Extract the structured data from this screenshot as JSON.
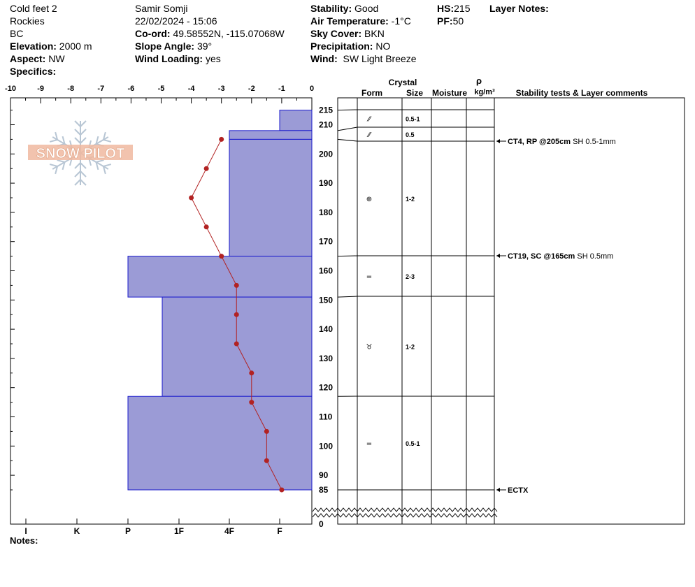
{
  "header": {
    "col1": {
      "site_name": "Cold feet 2",
      "range": "Rockies",
      "region": "BC",
      "elevation_label": "Elevation:",
      "elevation_value": "2000 m",
      "aspect_label": "Aspect:",
      "aspect_value": "NW",
      "specifics_label": "Specifics:"
    },
    "col2": {
      "observer": "Samir Somji",
      "datetime": "22/02/2024 - 15:06",
      "coord_label": "Co-ord:",
      "coord_value": "49.58552N, -115.07068W",
      "slope_label": "Slope Angle:",
      "slope_value": "39°",
      "wind_loading_label": "Wind Loading:",
      "wind_loading_value": "yes"
    },
    "col3": {
      "stability_label": "Stability:",
      "stability_value": "Good",
      "air_temp_label": "Air Temperature:",
      "air_temp_value": "-1°C",
      "sky_label": "Sky Cover:",
      "sky_value": "BKN",
      "precip_label": "Precipitation:",
      "precip_value": "NO",
      "wind_label": "Wind:",
      "wind_value": "SW Light Breeze"
    },
    "col4": {
      "hs_label": "HS:",
      "hs_value": "215",
      "pf_label": "PF:",
      "pf_value": "50"
    },
    "layer_notes_label": "Layer Notes:"
  },
  "logo_text": "SNOW PILOT",
  "notes_label": "Notes:",
  "temp_axis_labels": [
    "-10",
    "-9",
    "-8",
    "-7",
    "-6",
    "-5",
    "-4",
    "-3",
    "-2",
    "-1",
    "0"
  ],
  "hardness_labels": [
    "I",
    "K",
    "P",
    "1F",
    "4F",
    "F"
  ],
  "depth_labels": [
    "215",
    "210",
    "200",
    "190",
    "180",
    "170",
    "160",
    "150",
    "140",
    "130",
    "120",
    "110",
    "100",
    "90",
    "85",
    "0"
  ],
  "table_headers": {
    "crystal": "Crystal",
    "form": "Form",
    "size": "Size",
    "moisture": "Moisture",
    "rho": "ρ",
    "density_unit": "kg/m³",
    "stability": "Stability tests & Layer comments"
  },
  "chart_data": {
    "type": "snow-profile",
    "hardness_layers": [
      {
        "top": 215,
        "bottom": 208,
        "hardness": "F",
        "form": "⁄⁄",
        "size": "0.5-1"
      },
      {
        "top": 208,
        "bottom": 205,
        "hardness": "4F",
        "form": "⁄⁄",
        "size": "0.5"
      },
      {
        "top": 205,
        "bottom": 165,
        "hardness": "4F",
        "form": "⊕",
        "size": "1-2"
      },
      {
        "top": 165,
        "bottom": 151,
        "hardness": "P",
        "form": "=",
        "size": "2-3"
      },
      {
        "top": 151,
        "bottom": 117,
        "hardness": "P-",
        "form": "♉",
        "size": "1-2"
      },
      {
        "top": 117,
        "bottom": 85,
        "hardness": "P",
        "form": "=",
        "size": "0.5-1"
      }
    ],
    "temperature_profile": [
      {
        "depth": 205,
        "temp": -3.0
      },
      {
        "depth": 195,
        "temp": -3.5
      },
      {
        "depth": 185,
        "temp": -4.0
      },
      {
        "depth": 175,
        "temp": -3.5
      },
      {
        "depth": 165,
        "temp": -3.0
      },
      {
        "depth": 155,
        "temp": -2.5
      },
      {
        "depth": 145,
        "temp": -2.5
      },
      {
        "depth": 135,
        "temp": -2.5
      },
      {
        "depth": 125,
        "temp": -2.0
      },
      {
        "depth": 115,
        "temp": -2.0
      },
      {
        "depth": 105,
        "temp": -1.5
      },
      {
        "depth": 95,
        "temp": -1.5
      },
      {
        "depth": 85,
        "temp": -1.0
      }
    ],
    "stability_tests": [
      {
        "depth": 205,
        "bold": "CT4, RP @205cm",
        "text": "SH 0.5-1mm"
      },
      {
        "depth": 165,
        "bold": "CT19, SC @165cm",
        "text": "SH 0.5mm"
      },
      {
        "depth": 85,
        "bold": "ECTX",
        "text": ""
      }
    ],
    "xlim": [
      -10,
      0
    ],
    "ylim": [
      0,
      215
    ],
    "colors": {
      "layer_fill": "#9b9bd6",
      "layer_stroke": "#1a1acc",
      "temp_line": "#b22222",
      "logo": "#f0b8a0"
    }
  }
}
